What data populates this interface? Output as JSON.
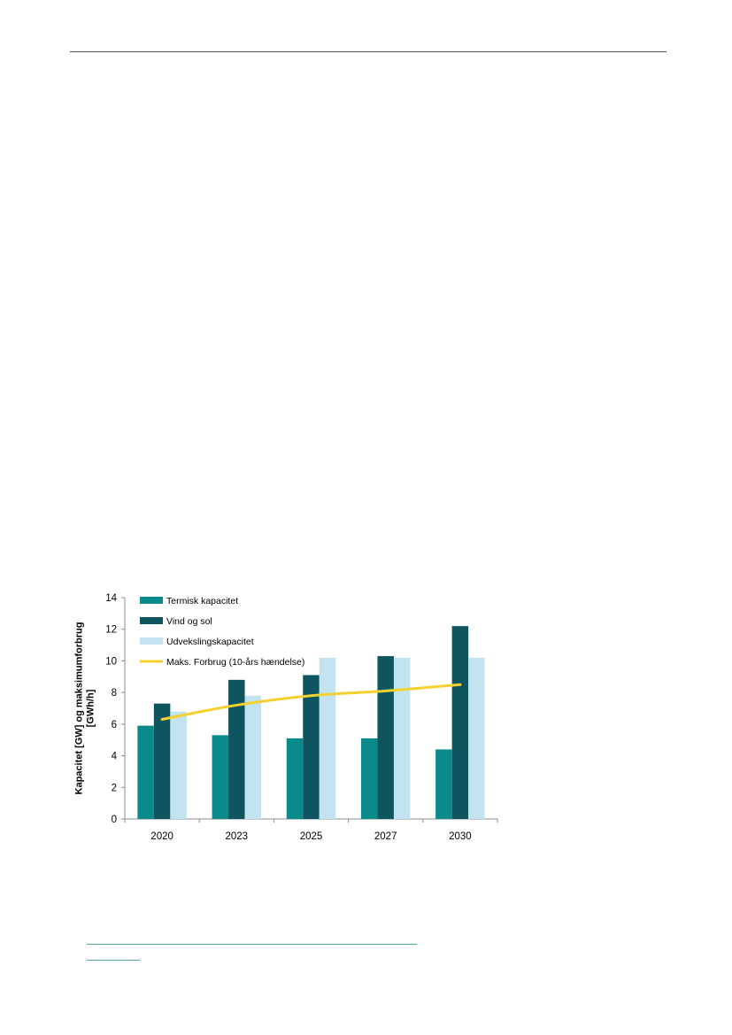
{
  "chart_data": {
    "type": "bar",
    "categories": [
      "2020",
      "2023",
      "2025",
      "2027",
      "2030"
    ],
    "series": [
      {
        "name": "Termisk kapacitet",
        "kind": "bar",
        "color": "#0a8a8a",
        "values": [
          5.9,
          5.3,
          5.1,
          5.1,
          4.4
        ]
      },
      {
        "name": "Vind og sol",
        "kind": "bar",
        "color": "#0e5560",
        "values": [
          7.3,
          8.8,
          9.1,
          10.3,
          12.2
        ]
      },
      {
        "name": "Udvekslingskapacitet",
        "kind": "bar",
        "color": "#c2e3ef",
        "values": [
          6.8,
          7.8,
          10.2,
          10.2,
          10.2
        ]
      },
      {
        "name": "Maks. Forbrug (10-års hændelse)",
        "kind": "line",
        "color": "#f5d130",
        "values": [
          6.3,
          7.2,
          7.8,
          8.1,
          8.5
        ]
      }
    ],
    "ylabel": "Kapacitet [GW] og maksimumforbrug [GWh/h]",
    "ylabel_lines": [
      "Kapacitet [GW] og maksimumforbrug",
      "[GWh/h]"
    ],
    "ylim": [
      0,
      14
    ],
    "yticks": [
      0,
      2,
      4,
      6,
      8,
      10,
      12,
      14
    ],
    "grid": false,
    "legend_position": "top-left"
  }
}
